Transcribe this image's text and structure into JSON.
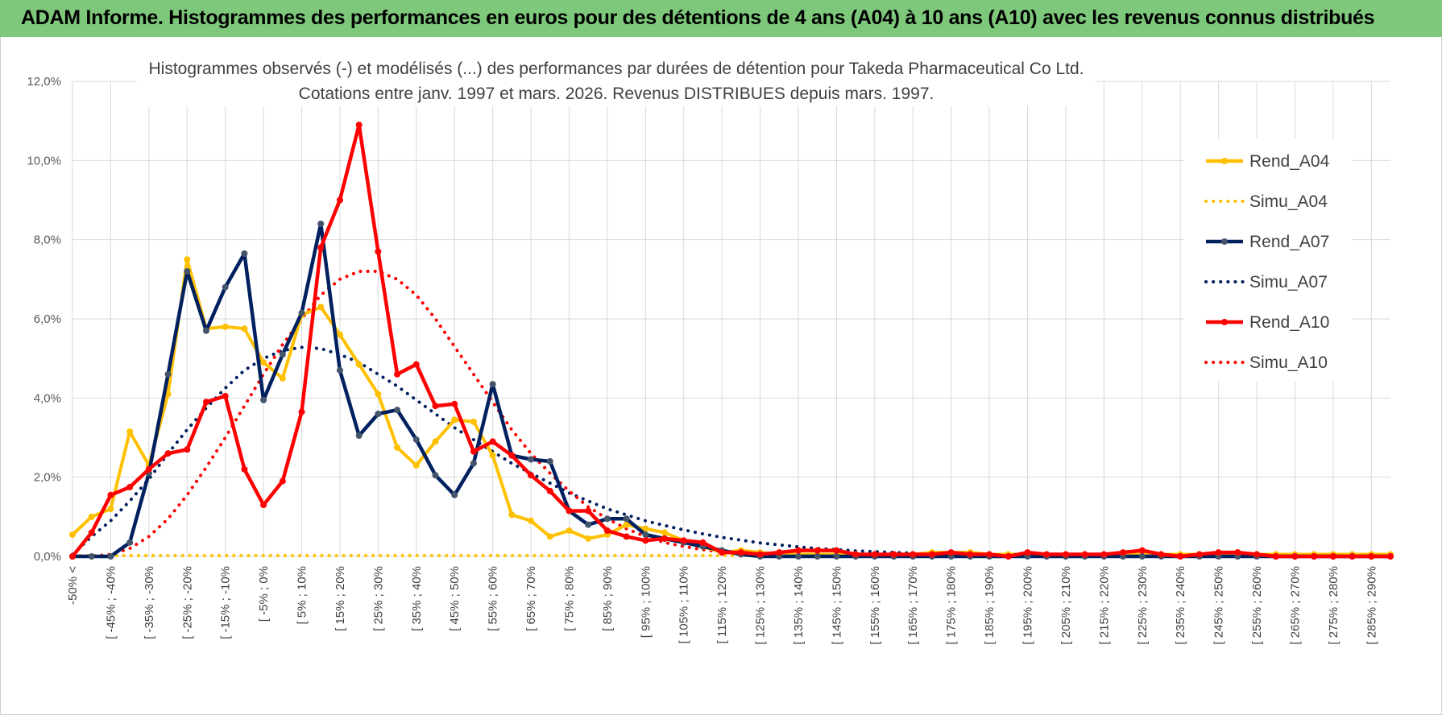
{
  "header": {
    "title": "ADAM Informe. Histogrammes des performances en euros pour des détentions de 4 ans (A04) à 10 ans (A10) avec les revenus connus distribués"
  },
  "chart_data": {
    "type": "line",
    "title": "Histogrammes observés (-) et modélisés (...) des performances par durées de détention pour Takeda Pharmaceutical Co Ltd.",
    "subtitle": "Cotations entre janv. 1997 et mars. 2026. Revenus DISTRIBUES depuis mars. 1997.",
    "xlabel": "",
    "ylabel": "",
    "ylim": [
      0,
      12
    ],
    "y_ticks": [
      "0,0%",
      "2,0%",
      "4,0%",
      "6,0%",
      "8,0%",
      "10,0%",
      "12,0%"
    ],
    "y_tick_values": [
      0,
      2,
      4,
      6,
      8,
      10,
      12
    ],
    "grid": true,
    "legend_position": "right",
    "categories": [
      "-50% <",
      "[ -50% ; -45%",
      "[ -45% ; -40%",
      "[ -40% ; -35%",
      "[ -35% ; -30%",
      "[ -30% ; -25%",
      "[ -25% ; -20%",
      "[ -20% ; -15%",
      "[ -15% ; -10%",
      "[ -10% ; -5%",
      "[ -5% ; 0%",
      "[ 0% ; 5%",
      "[ 5% ; 10%",
      "[ 10% ; 15%",
      "[ 15% ; 20%",
      "[ 20% ; 25%",
      "[ 25% ; 30%",
      "[ 30% ; 35%",
      "[ 35% ; 40%",
      "[ 40% ; 45%",
      "[ 45% ; 50%",
      "[ 50% ; 55%",
      "[ 55% ; 60%",
      "[ 60% ; 65%",
      "[ 65% ; 70%",
      "[ 70% ; 75%",
      "[ 75% ; 80%",
      "[ 80% ; 85%",
      "[ 85% ; 90%",
      "[ 90% ; 95%",
      "[ 95% ; 100%",
      "[ 100% ; 105%",
      "[ 105% ; 110%",
      "[ 110% ; 115%",
      "[ 115% ; 120%",
      "[ 120% ; 125%",
      "[ 125% ; 130%",
      "[ 130% ; 135%",
      "[ 135% ; 140%",
      "[ 140% ; 145%",
      "[ 145% ; 150%",
      "[ 150% ; 155%",
      "[ 155% ; 160%",
      "[ 160% ; 165%",
      "[ 165% ; 170%",
      "[ 170% ; 175%",
      "[ 175% ; 180%",
      "[ 180% ; 185%",
      "[ 185% ; 190%",
      "[ 190% ; 195%",
      "[ 195% ; 200%",
      "[ 200% ; 205%",
      "[ 205% ; 210%",
      "[ 210% ; 215%",
      "[ 215% ; 220%",
      "[ 220% ; 225%",
      "[ 225% ; 230%",
      "[ 230% ; 235%",
      "[ 235% ; 240%",
      "[ 240% ; 245%",
      "[ 245% ; 250%",
      "[ 250% ; 255%",
      "[ 255% ; 260%",
      "[ 260% ; 265%",
      "[ 265% ; 270%",
      "[ 270% ; 275%",
      "[ 275% ; 280%",
      "[ 280% ; 285%",
      "[ 285% ; 290%",
      "[ 290% ; 295%"
    ],
    "tick_label_indices": [
      0,
      2,
      4,
      6,
      8,
      10,
      12,
      14,
      16,
      18,
      20,
      22,
      24,
      26,
      28,
      30,
      32,
      34,
      36,
      38,
      40,
      42,
      44,
      46,
      48,
      50,
      52,
      54,
      56,
      58,
      60,
      62,
      64,
      66,
      68
    ],
    "series": [
      {
        "name": "Rend_A04",
        "style": "solid",
        "color": "#ffc000",
        "values": [
          0.55,
          1.0,
          1.2,
          3.15,
          2.3,
          4.1,
          7.5,
          5.75,
          5.8,
          5.75,
          4.9,
          4.5,
          6.1,
          6.3,
          5.6,
          4.85,
          4.1,
          2.75,
          2.3,
          2.9,
          3.45,
          3.4,
          2.55,
          1.05,
          0.9,
          0.5,
          0.65,
          0.45,
          0.55,
          0.8,
          0.7,
          0.6,
          0.4,
          0.25,
          0.1,
          0.15,
          0.1,
          0.05,
          0.05,
          0.05,
          0.05,
          0.05,
          0.05,
          0.05,
          0.05,
          0.1,
          0.1,
          0.1,
          0.05,
          0.05,
          0.05,
          0.05,
          0.05,
          0.05,
          0.05,
          0.05,
          0.1,
          0.05,
          0.05,
          0.05,
          0.05,
          0.1,
          0.05,
          0.05,
          0.05,
          0.05,
          0.05,
          0.05,
          0.05,
          0.05
        ]
      },
      {
        "name": "Simu_A04",
        "style": "dotted",
        "color": "#ffc000",
        "values": [
          0.02,
          0.02,
          0.02,
          0.02,
          0.02,
          0.02,
          0.02,
          0.02,
          0.02,
          0.02,
          0.02,
          0.02,
          0.02,
          0.02,
          0.02,
          0.02,
          0.02,
          0.02,
          0.02,
          0.02,
          0.02,
          0.02,
          0.02,
          0.02,
          0.02,
          0.02,
          0.02,
          0.02,
          0.02,
          0.02,
          0.02,
          0.02,
          0.02,
          0.02,
          0.02,
          0.02,
          0.02,
          0.02,
          0.02,
          0.02,
          0.02,
          0.02,
          0.02,
          0.02,
          0.02,
          0.02,
          0.02,
          0.02,
          0.02,
          0.02,
          0.02,
          0.02,
          0.02,
          0.02,
          0.02,
          0.02,
          0.02,
          0.02,
          0.02,
          0.02,
          0.02,
          0.02,
          0.02,
          0.02,
          0.02,
          0.02,
          0.02,
          0.02,
          0.02,
          0.02
        ]
      },
      {
        "name": "Rend_A07",
        "style": "solid",
        "color": "#002060",
        "values": [
          0.0,
          0.0,
          0.0,
          0.35,
          2.1,
          4.6,
          7.2,
          5.7,
          6.8,
          7.65,
          3.95,
          5.1,
          6.15,
          8.4,
          4.7,
          3.05,
          3.6,
          3.7,
          2.95,
          2.05,
          1.55,
          2.35,
          4.35,
          2.55,
          2.45,
          2.4,
          1.15,
          0.8,
          0.95,
          0.95,
          0.55,
          0.45,
          0.35,
          0.25,
          0.15,
          0.05,
          0.0,
          0.0,
          0.0,
          0.0,
          0.0,
          0.0,
          0.0,
          0.0,
          0.0,
          0.0,
          0.0,
          0.0,
          0.0,
          0.0,
          0.0,
          0.0,
          0.0,
          0.0,
          0.0,
          0.0,
          0.0,
          0.0,
          0.0,
          0.0,
          0.0,
          0.0,
          0.0,
          0.0,
          0.0,
          0.0,
          0.0,
          0.0,
          0.0,
          0.0
        ]
      },
      {
        "name": "Simu_A07",
        "style": "dotted",
        "color": "#002060",
        "values": [
          0.05,
          0.5,
          0.9,
          1.4,
          1.95,
          2.6,
          3.2,
          3.75,
          4.25,
          4.7,
          5.0,
          5.2,
          5.28,
          5.25,
          5.1,
          4.9,
          4.6,
          4.3,
          3.95,
          3.6,
          3.25,
          2.95,
          2.65,
          2.35,
          2.1,
          1.85,
          1.6,
          1.4,
          1.2,
          1.05,
          0.9,
          0.78,
          0.67,
          0.57,
          0.48,
          0.41,
          0.34,
          0.29,
          0.24,
          0.2,
          0.17,
          0.14,
          0.12,
          0.1,
          0.08,
          0.07,
          0.06,
          0.05,
          0.04,
          0.04,
          0.03,
          0.03,
          0.02,
          0.02,
          0.02,
          0.02,
          0.01,
          0.01,
          0.01,
          0.01,
          0.01,
          0.01,
          0.01,
          0.01,
          0.01,
          0.01,
          0.01,
          0.01,
          0.01,
          0.01
        ]
      },
      {
        "name": "Rend_A10",
        "style": "solid",
        "color": "#ff0000",
        "values": [
          0.0,
          0.6,
          1.55,
          1.75,
          2.2,
          2.6,
          2.7,
          3.9,
          4.05,
          2.2,
          1.3,
          1.9,
          3.65,
          7.8,
          9.0,
          10.9,
          7.7,
          4.6,
          4.85,
          3.8,
          3.85,
          2.65,
          2.9,
          2.55,
          2.05,
          1.65,
          1.15,
          1.15,
          0.65,
          0.5,
          0.4,
          0.45,
          0.4,
          0.35,
          0.1,
          0.1,
          0.05,
          0.1,
          0.15,
          0.15,
          0.15,
          0.05,
          0.05,
          0.05,
          0.05,
          0.05,
          0.1,
          0.05,
          0.05,
          0.0,
          0.1,
          0.05,
          0.05,
          0.05,
          0.05,
          0.1,
          0.15,
          0.05,
          0.0,
          0.05,
          0.1,
          0.1,
          0.05,
          0.0,
          0.0,
          0.0,
          0.0,
          0.0,
          0.0,
          0.0
        ]
      },
      {
        "name": "Simu_A10",
        "style": "dotted",
        "color": "#ff0000",
        "values": [
          0.0,
          0.0,
          0.05,
          0.2,
          0.5,
          0.95,
          1.55,
          2.25,
          3.0,
          3.8,
          4.6,
          5.35,
          6.0,
          6.6,
          7.0,
          7.2,
          7.2,
          7.0,
          6.6,
          6.0,
          5.3,
          4.6,
          3.9,
          3.2,
          2.6,
          2.1,
          1.65,
          1.25,
          0.95,
          0.7,
          0.5,
          0.35,
          0.25,
          0.17,
          0.11,
          0.07,
          0.05,
          0.03,
          0.02,
          0.01,
          0.01,
          0.0,
          0.0,
          0.0,
          0.0,
          0.0,
          0.0,
          0.0,
          0.0,
          0.0,
          0.0,
          0.0,
          0.0,
          0.0,
          0.0,
          0.0,
          0.0,
          0.0,
          0.0,
          0.0,
          0.0,
          0.0,
          0.0,
          0.0,
          0.0,
          0.0,
          0.0,
          0.0,
          0.0,
          0.0
        ]
      }
    ]
  }
}
